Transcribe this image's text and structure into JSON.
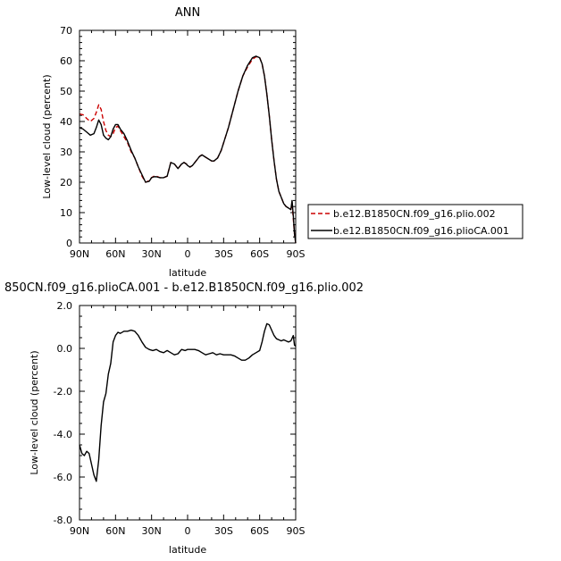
{
  "chart_data": [
    {
      "type": "line",
      "title": "ANN",
      "xlabel": "latitude",
      "ylabel": "Low-level cloud (percent)",
      "xlim": [
        90,
        -90
      ],
      "ylim": [
        0,
        70
      ],
      "x_ticks": [
        90,
        60,
        30,
        0,
        -30,
        -60,
        -90
      ],
      "x_tick_labels": [
        "90N",
        "60N",
        "30N",
        "0",
        "30S",
        "60S",
        "90S"
      ],
      "y_ticks": [
        0,
        10,
        20,
        30,
        40,
        50,
        60,
        70
      ],
      "y_tick_labels": [
        "0",
        "10",
        "20",
        "30",
        "40",
        "50",
        "60",
        "70"
      ],
      "legend_position": "right",
      "series": [
        {
          "name": "b.e12.B1850CN.f09_g16.plio.002",
          "color": "#cc0000",
          "dash": "dashed",
          "x": [
            90,
            87,
            84,
            81,
            78,
            76,
            74,
            72,
            70,
            68,
            66,
            64,
            62,
            60,
            58,
            56,
            53,
            50,
            47,
            44,
            41,
            38,
            35,
            32,
            30,
            28,
            26,
            23,
            20,
            17,
            14,
            11,
            8,
            5,
            3,
            1,
            0,
            -2,
            -4,
            -6,
            -8,
            -10,
            -12,
            -14,
            -16,
            -18,
            -20,
            -22,
            -25,
            -28,
            -30,
            -34,
            -38,
            -42,
            -46,
            -50,
            -54,
            -57,
            -60,
            -62,
            -64,
            -66,
            -68,
            -70,
            -72,
            -74,
            -76,
            -78,
            -80,
            -82,
            -84,
            -86,
            -87,
            -88,
            -89,
            -90
          ],
          "y": [
            42.5,
            42.2,
            41,
            40,
            41,
            43,
            45.5,
            44,
            40,
            37,
            35.5,
            35,
            36,
            38,
            38.5,
            37,
            35,
            33,
            30,
            28,
            25,
            22,
            20,
            20.5,
            21.5,
            22,
            22,
            21.5,
            21.5,
            22,
            26.5,
            26,
            24.5,
            26,
            26.5,
            26,
            25.5,
            25,
            25.5,
            26.5,
            27.5,
            28.5,
            29,
            28.5,
            28,
            27.5,
            27,
            27,
            28,
            30.5,
            33,
            38,
            44,
            50,
            55,
            58,
            60.5,
            61.3,
            61,
            59,
            55,
            49,
            42,
            34,
            27,
            21,
            17,
            15,
            13,
            12,
            11.5,
            11,
            13,
            8,
            3,
            0
          ]
        },
        {
          "name": "b.e12.B1850CN.f09_g16.plioCA.001",
          "color": "#000000",
          "dash": "solid",
          "x": [
            90,
            87,
            84,
            81,
            78,
            76,
            74,
            72,
            70,
            68,
            66,
            64,
            62,
            60,
            58,
            56,
            53,
            50,
            47,
            44,
            41,
            38,
            35,
            32,
            30,
            28,
            26,
            23,
            20,
            17,
            14,
            11,
            8,
            5,
            3,
            1,
            0,
            -2,
            -4,
            -6,
            -8,
            -10,
            -12,
            -14,
            -16,
            -18,
            -20,
            -22,
            -25,
            -28,
            -30,
            -34,
            -38,
            -42,
            -46,
            -50,
            -54,
            -57,
            -60,
            -62,
            -64,
            -66,
            -68,
            -70,
            -72,
            -74,
            -76,
            -78,
            -80,
            -82,
            -84,
            -86,
            -87,
            -88,
            -89,
            -90
          ],
          "y": [
            38,
            37.5,
            36.5,
            35.5,
            36,
            38,
            40.5,
            39,
            35.5,
            34.5,
            34,
            35,
            37.5,
            39,
            39,
            37.5,
            36,
            33.5,
            30.5,
            28,
            25,
            22.5,
            20,
            20.3,
            21.5,
            21.8,
            21.8,
            21.5,
            21.5,
            22,
            26.5,
            26,
            24.5,
            26,
            26.5,
            26,
            25.5,
            25,
            25.5,
            26.5,
            27.5,
            28.5,
            29,
            28.5,
            28,
            27.5,
            27,
            27,
            28,
            30.5,
            33,
            38,
            44,
            50,
            55,
            58.5,
            61,
            61.5,
            61,
            59,
            55,
            49,
            42,
            34,
            27,
            21,
            17,
            15,
            13,
            12,
            11.5,
            11,
            14,
            9,
            3,
            0
          ]
        }
      ]
    },
    {
      "type": "line",
      "title": "850CN.f09_g16.plioCA.001 - b.e12.B1850CN.f09_g16.plio.002",
      "xlabel": "latitude",
      "ylabel": "Low-level cloud (percent)",
      "xlim": [
        90,
        -90
      ],
      "ylim": [
        -8,
        2
      ],
      "x_ticks": [
        90,
        60,
        30,
        0,
        -30,
        -60,
        -90
      ],
      "x_tick_labels": [
        "90N",
        "60N",
        "30N",
        "0",
        "30S",
        "60S",
        "90S"
      ],
      "y_ticks": [
        -8,
        -6,
        -4,
        -2,
        0,
        2
      ],
      "y_tick_labels": [
        "-8.0",
        "-6.0",
        "-4.0",
        "-2.0",
        "0.0",
        "2.0"
      ],
      "series": [
        {
          "color": "#000000",
          "dash": "solid",
          "x": [
            90,
            88,
            86,
            84,
            82,
            80,
            78,
            76,
            74,
            72,
            70,
            68,
            66,
            64,
            62,
            60,
            58,
            56,
            53,
            50,
            47,
            44,
            41,
            38,
            35,
            32,
            29,
            26,
            23,
            20,
            17,
            14,
            11,
            8,
            5,
            2,
            0,
            -3,
            -6,
            -9,
            -12,
            -15,
            -18,
            -21,
            -24,
            -27,
            -30,
            -33,
            -36,
            -39,
            -42,
            -45,
            -48,
            -51,
            -54,
            -57,
            -60,
            -62,
            -64,
            -66,
            -68,
            -70,
            -72,
            -74,
            -76,
            -78,
            -80,
            -82,
            -84,
            -86,
            -88,
            -89,
            -90
          ],
          "y": [
            -4.5,
            -4.9,
            -5.0,
            -4.8,
            -4.9,
            -5.4,
            -5.9,
            -6.2,
            -5.2,
            -3.6,
            -2.5,
            -2.1,
            -1.2,
            -0.7,
            0.3,
            0.6,
            0.75,
            0.7,
            0.8,
            0.8,
            0.85,
            0.8,
            0.6,
            0.3,
            0.05,
            -0.05,
            -0.1,
            -0.05,
            -0.15,
            -0.2,
            -0.1,
            -0.2,
            -0.3,
            -0.25,
            -0.05,
            -0.1,
            -0.05,
            -0.05,
            -0.05,
            -0.1,
            -0.2,
            -0.3,
            -0.25,
            -0.2,
            -0.3,
            -0.25,
            -0.3,
            -0.3,
            -0.3,
            -0.35,
            -0.45,
            -0.55,
            -0.55,
            -0.45,
            -0.3,
            -0.2,
            -0.1,
            0.3,
            0.8,
            1.15,
            1.1,
            0.85,
            0.6,
            0.45,
            0.4,
            0.35,
            0.4,
            0.35,
            0.3,
            0.35,
            0.6,
            0.15,
            0.1
          ]
        }
      ]
    }
  ]
}
